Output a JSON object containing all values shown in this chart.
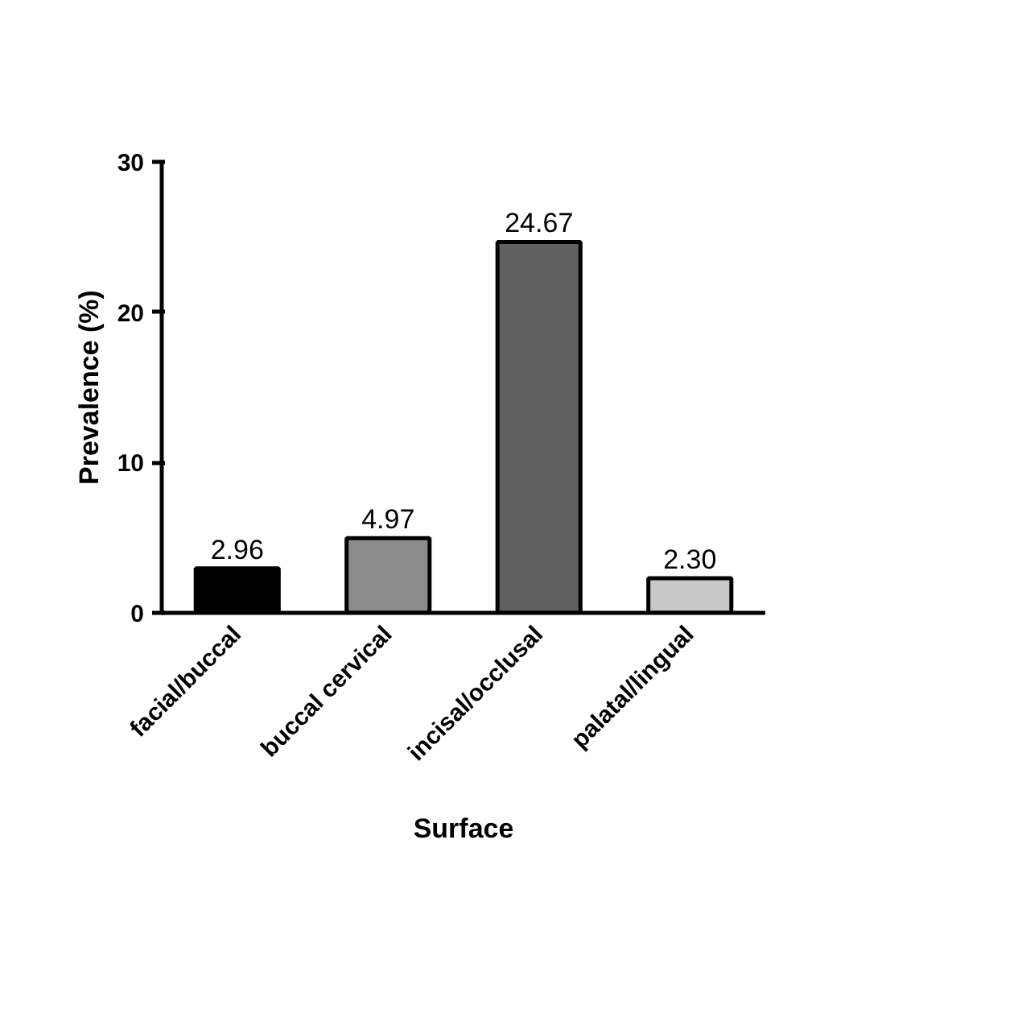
{
  "chart_data": {
    "type": "bar",
    "xlabel": "Surface",
    "ylabel": "Prevalence (%)",
    "categories": [
      "facial/buccal",
      "buccal cervical",
      "incisal/occlusal",
      "palatal/lingual"
    ],
    "values": [
      2.96,
      4.97,
      24.67,
      2.3
    ],
    "colors": [
      "#000000",
      "#8c8c8c",
      "#616161",
      "#c8c8c8"
    ],
    "ylim": [
      0,
      30
    ],
    "yticks": [
      0,
      10,
      20,
      30
    ],
    "grid": false,
    "data_labels": true,
    "value_labels": [
      "2.96",
      "4.97",
      "24.67",
      "2.30"
    ]
  }
}
